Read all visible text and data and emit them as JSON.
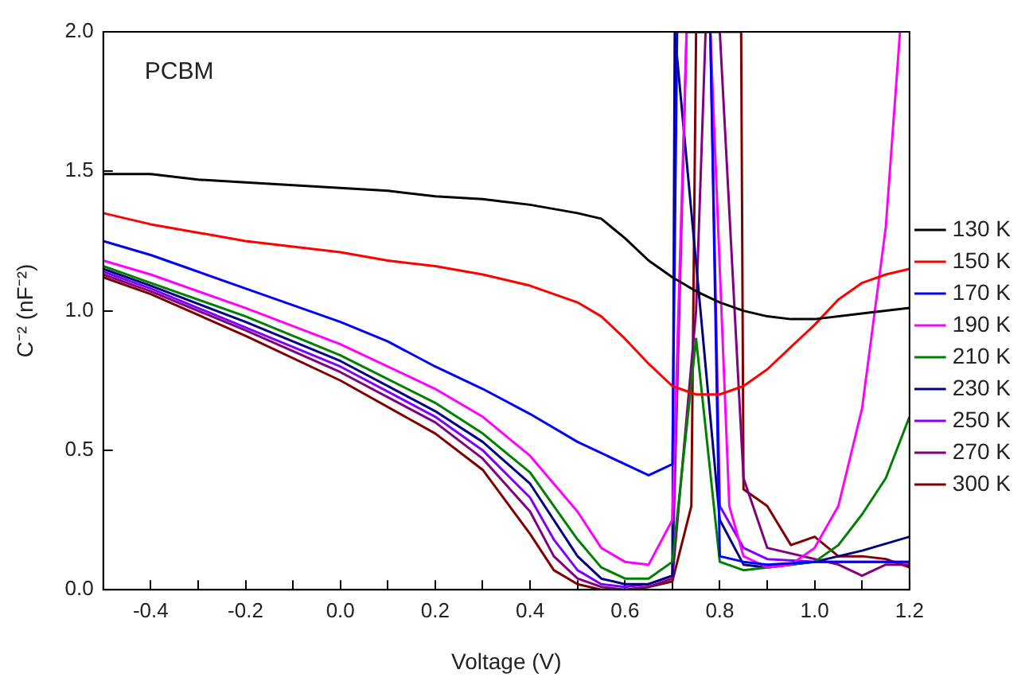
{
  "chart_data": {
    "type": "line",
    "xlabel": "Voltage (V)",
    "ylabel": "C⁻² (nF⁻²)",
    "annotations": [
      "PCBM"
    ],
    "xlim": [
      -0.5,
      1.2
    ],
    "ylim": [
      0,
      2.0
    ],
    "xticks": [
      -0.4,
      {
        "value": -0.3,
        "label": null
      },
      -0.2,
      {
        "value": -0.1,
        "label": null
      },
      {
        "value": 0,
        "label": "0.0"
      },
      {
        "value": 0.1,
        "label": null
      },
      0.2,
      {
        "value": 0.3,
        "label": null
      },
      0.4,
      {
        "value": 0.5,
        "label": null
      },
      0.6,
      {
        "value": 0.7,
        "label": null
      },
      0.8,
      {
        "value": 0.9,
        "label": null
      },
      {
        "value": 1.0,
        "label": "1.0"
      },
      {
        "value": 1.1,
        "label": null
      },
      1.2
    ],
    "yticks": [
      {
        "value": 0,
        "label": "0.0"
      },
      0.5,
      {
        "value": 1.0,
        "label": "1.0"
      },
      1.5,
      {
        "value": 2.0,
        "label": "2.0"
      }
    ],
    "grid": false,
    "legend": "right",
    "marker": "none",
    "line_style": "solid",
    "series": [
      {
        "name": "130 K",
        "color": "#000000",
        "x": [
          -0.5,
          -0.4,
          -0.3,
          -0.2,
          -0.1,
          0,
          0.1,
          0.2,
          0.3,
          0.4,
          0.5,
          0.55,
          0.6,
          0.65,
          0.7,
          0.75,
          0.8,
          0.85,
          0.9,
          0.95,
          1.0,
          1.1,
          1.2
        ],
        "values": [
          1.49,
          1.49,
          1.47,
          1.46,
          1.45,
          1.44,
          1.43,
          1.41,
          1.4,
          1.38,
          1.35,
          1.33,
          1.26,
          1.18,
          1.12,
          1.07,
          1.03,
          1.0,
          0.98,
          0.97,
          0.97,
          0.99,
          1.01
        ]
      },
      {
        "name": "150 K",
        "color": "#ff0000",
        "x": [
          -0.5,
          -0.4,
          -0.3,
          -0.2,
          -0.1,
          0,
          0.1,
          0.2,
          0.3,
          0.4,
          0.5,
          0.55,
          0.6,
          0.65,
          0.7,
          0.75,
          0.8,
          0.85,
          0.9,
          0.95,
          1.0,
          1.05,
          1.1,
          1.15,
          1.2
        ],
        "values": [
          1.35,
          1.31,
          1.28,
          1.25,
          1.23,
          1.21,
          1.18,
          1.16,
          1.13,
          1.09,
          1.03,
          0.98,
          0.9,
          0.81,
          0.73,
          0.7,
          0.7,
          0.73,
          0.79,
          0.87,
          0.95,
          1.04,
          1.1,
          1.13,
          1.15
        ]
      },
      {
        "name": "170 K",
        "color": "#0000ff",
        "x": [
          -0.5,
          -0.4,
          -0.3,
          -0.2,
          -0.1,
          0,
          0.1,
          0.2,
          0.3,
          0.4,
          0.5,
          0.6,
          0.65,
          0.7,
          0.71,
          0.78,
          0.8,
          0.85,
          0.9,
          1.0,
          1.1,
          1.2
        ],
        "values": [
          1.25,
          1.2,
          1.14,
          1.08,
          1.02,
          0.96,
          0.89,
          0.8,
          0.72,
          0.63,
          0.53,
          0.45,
          0.41,
          0.45,
          2.0,
          2.0,
          0.12,
          0.1,
          0.09,
          0.1,
          0.1,
          0.1
        ]
      },
      {
        "name": "190 K",
        "color": "#ff00ff",
        "x": [
          -0.5,
          -0.4,
          -0.2,
          0,
          0.2,
          0.3,
          0.4,
          0.5,
          0.55,
          0.6,
          0.65,
          0.7,
          0.73,
          0.78,
          0.82,
          0.85,
          0.9,
          0.95,
          1.0,
          1.05,
          1.1,
          1.15,
          1.18
        ],
        "values": [
          1.18,
          1.13,
          1.01,
          0.88,
          0.72,
          0.62,
          0.48,
          0.28,
          0.15,
          0.1,
          0.09,
          0.25,
          2.0,
          2.0,
          0.3,
          0.12,
          0.08,
          0.09,
          0.15,
          0.3,
          0.65,
          1.3,
          2.0
        ]
      },
      {
        "name": "210 K",
        "color": "#008000",
        "x": [
          -0.5,
          -0.4,
          -0.2,
          0,
          0.2,
          0.3,
          0.4,
          0.5,
          0.55,
          0.6,
          0.65,
          0.7,
          0.75,
          0.8,
          0.85,
          0.9,
          1.0,
          1.05,
          1.1,
          1.15,
          1.2
        ],
        "values": [
          1.16,
          1.1,
          0.98,
          0.84,
          0.67,
          0.56,
          0.42,
          0.18,
          0.08,
          0.04,
          0.04,
          0.1,
          0.9,
          0.1,
          0.07,
          0.08,
          0.1,
          0.16,
          0.27,
          0.4,
          0.62
        ]
      },
      {
        "name": "230 K",
        "color": "#000080",
        "x": [
          -0.5,
          -0.4,
          -0.2,
          0,
          0.2,
          0.3,
          0.4,
          0.5,
          0.55,
          0.6,
          0.65,
          0.7,
          0.705,
          0.8,
          0.85,
          0.9,
          1.0,
          1.1,
          1.2
        ],
        "values": [
          1.15,
          1.09,
          0.96,
          0.82,
          0.64,
          0.53,
          0.38,
          0.12,
          0.04,
          0.02,
          0.02,
          0.05,
          2.0,
          0.25,
          0.09,
          0.08,
          0.1,
          0.14,
          0.19
        ]
      },
      {
        "name": "250 K",
        "color": "#8000ff",
        "x": [
          -0.5,
          -0.4,
          -0.2,
          0,
          0.2,
          0.3,
          0.4,
          0.45,
          0.5,
          0.55,
          0.6,
          0.65,
          0.7,
          0.73,
          0.78,
          0.8,
          0.85,
          0.9,
          1.0,
          1.1,
          1.2
        ],
        "values": [
          1.14,
          1.08,
          0.94,
          0.8,
          0.62,
          0.5,
          0.33,
          0.18,
          0.07,
          0.02,
          0.01,
          0.02,
          0.05,
          2.0,
          2.0,
          0.3,
          0.15,
          0.11,
          0.1,
          0.1,
          0.1
        ]
      },
      {
        "name": "270 K",
        "color": "#800080",
        "x": [
          -0.5,
          -0.4,
          -0.2,
          0,
          0.2,
          0.3,
          0.4,
          0.45,
          0.5,
          0.55,
          0.6,
          0.65,
          0.7,
          0.75,
          0.77,
          0.8,
          0.85,
          0.9,
          1.0,
          1.05,
          1.1,
          1.15,
          1.2
        ],
        "values": [
          1.13,
          1.07,
          0.93,
          0.78,
          0.6,
          0.47,
          0.28,
          0.12,
          0.04,
          0.01,
          0.0,
          0.01,
          0.04,
          1.0,
          2.0,
          2.0,
          0.4,
          0.15,
          0.11,
          0.09,
          0.05,
          0.09,
          0.09
        ]
      },
      {
        "name": "300 K",
        "color": "#800000",
        "x": [
          -0.5,
          -0.4,
          -0.2,
          0,
          0.2,
          0.3,
          0.4,
          0.45,
          0.5,
          0.55,
          0.6,
          0.65,
          0.7,
          0.74,
          0.75,
          0.845,
          0.85,
          0.9,
          0.95,
          1.0,
          1.05,
          1.1,
          1.15,
          1.2
        ],
        "values": [
          1.12,
          1.06,
          0.91,
          0.75,
          0.56,
          0.43,
          0.2,
          0.07,
          0.02,
          0.0,
          0.0,
          0.01,
          0.03,
          0.3,
          2.0,
          2.0,
          0.36,
          0.3,
          0.16,
          0.19,
          0.12,
          0.12,
          0.11,
          0.08
        ]
      }
    ]
  }
}
